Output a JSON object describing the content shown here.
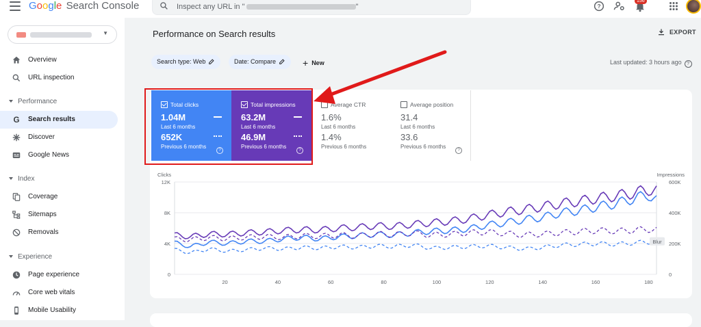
{
  "header": {
    "app_name": "Google Search Console",
    "logo_parts": [
      "G",
      "o",
      "o",
      "g",
      "l",
      "e"
    ],
    "search_placeholder": "Inspect any URL in \"",
    "search_suffix": "\"",
    "notification_count": "156"
  },
  "sidebar": {
    "items": [
      {
        "label": "Overview",
        "icon": "home-icon"
      },
      {
        "label": "URL inspection",
        "icon": "search-icon"
      }
    ],
    "sections": [
      {
        "title": "Performance",
        "items": [
          {
            "label": "Search results",
            "icon": "google-g-icon",
            "active": true
          },
          {
            "label": "Discover",
            "icon": "asterisk-icon"
          },
          {
            "label": "Google News",
            "icon": "news-icon"
          }
        ]
      },
      {
        "title": "Index",
        "items": [
          {
            "label": "Coverage",
            "icon": "file-copy-icon"
          },
          {
            "label": "Sitemaps",
            "icon": "sitemap-icon"
          },
          {
            "label": "Removals",
            "icon": "removal-icon"
          }
        ]
      },
      {
        "title": "Experience",
        "items": [
          {
            "label": "Page experience",
            "icon": "page-experience-icon"
          },
          {
            "label": "Core web vitals",
            "icon": "speedometer-icon"
          },
          {
            "label": "Mobile Usability",
            "icon": "phone-icon"
          }
        ]
      }
    ]
  },
  "main": {
    "title": "Performance on Search results",
    "export_label": "EXPORT",
    "filters": [
      {
        "label": "Search type: Web"
      },
      {
        "label": "Date: Compare"
      }
    ],
    "new_label": "New",
    "last_updated": "Last updated: 3 hours ago"
  },
  "metrics": [
    {
      "label": "Total clicks",
      "value": "1.04M",
      "period": "Last 6 months",
      "prev_value": "652K",
      "prev_period": "Previous 6 months",
      "checked": true,
      "color": "#4285f4"
    },
    {
      "label": "Total impressions",
      "value": "63.2M",
      "period": "Last 6 months",
      "prev_value": "46.9M",
      "prev_period": "Previous 6 months",
      "checked": true,
      "color": "#673ab7"
    },
    {
      "label": "Average CTR",
      "value": "1.6%",
      "period": "Last 6 months",
      "prev_value": "1.4%",
      "prev_period": "Previous 6 months",
      "checked": false
    },
    {
      "label": "Average position",
      "value": "31.4",
      "period": "Last 6 months",
      "prev_value": "33.6",
      "prev_period": "Previous 6 months",
      "checked": false
    }
  ],
  "chart_data": {
    "type": "line",
    "left_axis_label": "Clicks",
    "right_axis_label": "Impressions",
    "left_ticks": [
      "12K",
      "8K",
      "4K",
      "0"
    ],
    "right_ticks": [
      "600K",
      "400K",
      "200K",
      "0"
    ],
    "ylim_left": [
      0,
      12000
    ],
    "ylim_right": [
      0,
      600000
    ],
    "x_ticks": [
      "20",
      "40",
      "60",
      "80",
      "100",
      "120",
      "140",
      "160",
      "180"
    ],
    "xlim": [
      1,
      183
    ],
    "tooltip_label": "Blur",
    "colors": {
      "clicks": "#4285f4",
      "impressions": "#673ab7",
      "annotation": "#e01a1a"
    },
    "series": [
      {
        "name": "Clicks",
        "period": "current",
        "style": "solid",
        "color": "#4285f4",
        "x": [
          1,
          7,
          14,
          21,
          28,
          35,
          42,
          49,
          56,
          63,
          70,
          77,
          84,
          91,
          98,
          105,
          112,
          119,
          126,
          133,
          140,
          147,
          154,
          161,
          168,
          175,
          180,
          183
        ],
        "y": [
          4100,
          3600,
          4200,
          4000,
          4300,
          4300,
          4600,
          4800,
          4600,
          4900,
          5000,
          5200,
          5100,
          5400,
          5600,
          5700,
          5900,
          6400,
          6700,
          7100,
          7400,
          8000,
          8300,
          8800,
          9200,
          9900,
          10300,
          9700
        ]
      },
      {
        "name": "Impressions",
        "period": "current",
        "style": "solid",
        "color": "#673ab7",
        "x": [
          1,
          7,
          14,
          21,
          28,
          35,
          42,
          49,
          56,
          63,
          70,
          77,
          84,
          91,
          98,
          105,
          112,
          119,
          126,
          133,
          140,
          147,
          154,
          161,
          168,
          175,
          180,
          183
        ],
        "y": [
          255000,
          245000,
          262000,
          260000,
          270000,
          275000,
          285000,
          290000,
          288000,
          300000,
          305000,
          315000,
          312000,
          325000,
          335000,
          345000,
          360000,
          385000,
          405000,
          420000,
          440000,
          460000,
          475000,
          495000,
          510000,
          530000,
          550000,
          545000
        ]
      },
      {
        "name": "Clicks",
        "period": "previous",
        "style": "dashed",
        "color": "#4285f4",
        "x": [
          1,
          7,
          14,
          21,
          28,
          35,
          42,
          49,
          56,
          63,
          70,
          77,
          84,
          91,
          98,
          105,
          112,
          119,
          126,
          133,
          140,
          147,
          154,
          161,
          168,
          175,
          180,
          183
        ],
        "y": [
          3200,
          2800,
          3300,
          3000,
          3200,
          3400,
          3300,
          3500,
          3400,
          3600,
          3500,
          3700,
          3600,
          3800,
          3400,
          3500,
          3600,
          3700,
          3500,
          3300,
          3500,
          3800,
          3900,
          4000,
          3900,
          4100,
          4200,
          4100
        ]
      },
      {
        "name": "Impressions",
        "period": "previous",
        "style": "dashed",
        "color": "#673ab7",
        "x": [
          1,
          7,
          14,
          21,
          28,
          35,
          42,
          49,
          56,
          63,
          70,
          77,
          84,
          91,
          98,
          105,
          112,
          119,
          126,
          133,
          140,
          147,
          154,
          161,
          168,
          175,
          180,
          183
        ],
        "y": [
          230000,
          225000,
          238000,
          232000,
          240000,
          245000,
          240000,
          250000,
          248000,
          255000,
          250000,
          262000,
          258000,
          268000,
          255000,
          260000,
          270000,
          275000,
          265000,
          255000,
          262000,
          270000,
          278000,
          285000,
          280000,
          288000,
          292000,
          290000
        ]
      }
    ]
  }
}
